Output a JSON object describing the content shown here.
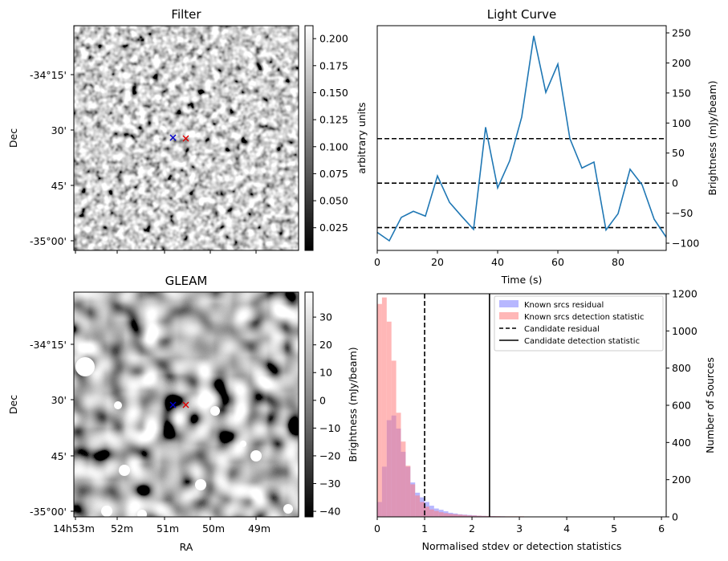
{
  "panels": {
    "filter": {
      "title": "Filter",
      "dec_ticks": [
        "-34°15'",
        "30'",
        "45'",
        "-35°00'"
      ],
      "ylabel": "Dec",
      "colorbar": {
        "label": "arbitrary units",
        "ticks": [
          "0.025",
          "0.050",
          "0.075",
          "0.100",
          "0.125",
          "0.150",
          "0.175",
          "0.200"
        ],
        "values": [
          0.025,
          0.05,
          0.075,
          0.1,
          0.125,
          0.15,
          0.175,
          0.2
        ],
        "range": [
          0.004,
          0.212
        ]
      },
      "markers": [
        {
          "name": "blue-cross",
          "color": "#0000cc"
        },
        {
          "name": "red-cross",
          "color": "#dd0000"
        }
      ]
    },
    "gleam": {
      "title": "GLEAM",
      "dec_ticks": [
        "-34°15'",
        "30'",
        "45'",
        "-35°00'"
      ],
      "ylabel": "Dec",
      "xlabel": "RA",
      "ra_ticks": [
        "14h53m",
        "52m",
        "51m",
        "50m",
        "49m"
      ],
      "colorbar": {
        "label": "Brightness (mJy/beam)",
        "ticks": [
          "30",
          "20",
          "10",
          "0",
          "−10",
          "−20",
          "−30",
          "−40"
        ],
        "values": [
          30,
          20,
          10,
          0,
          -10,
          -20,
          -30,
          -40
        ],
        "range": [
          -42,
          39
        ]
      }
    }
  },
  "chart_data": [
    {
      "type": "line",
      "title": "Light Curve",
      "xlabel": "Time (s)",
      "ylabel": "Brightness (mJy/beam)",
      "xlim": [
        0,
        96
      ],
      "ylim": [
        -112,
        262
      ],
      "xticks": [
        0,
        20,
        40,
        60,
        80
      ],
      "yticks": [
        -100,
        -50,
        0,
        50,
        100,
        150,
        200,
        250
      ],
      "x": [
        0,
        4,
        8,
        12,
        16,
        20,
        24,
        28,
        32,
        36,
        40,
        44,
        48,
        52,
        56,
        60,
        64,
        68,
        72,
        76,
        80,
        84,
        88,
        92,
        96
      ],
      "y": [
        -82,
        -96,
        -57,
        -47,
        -55,
        12,
        -32,
        -55,
        -77,
        93,
        -8,
        37,
        110,
        245,
        151,
        198,
        74,
        25,
        35,
        -78,
        -51,
        23,
        -3,
        -60,
        -90
      ],
      "hlines": [
        74,
        0,
        -74
      ],
      "color": "#1f77b4"
    },
    {
      "type": "histogram",
      "xlabel": "Normalised stdev or detection statistics",
      "ylabel": "Number of Sources",
      "xlim": [
        0,
        6.1
      ],
      "ylim": [
        0,
        1200
      ],
      "xticks": [
        0,
        1,
        2,
        3,
        4,
        5,
        6
      ],
      "yticks": [
        0,
        200,
        400,
        600,
        800,
        1000,
        1200
      ],
      "bin_width": 0.1,
      "series": [
        {
          "name": "Known srcs residual",
          "color": "#7b7bff",
          "values": [
            80,
            270,
            520,
            545,
            475,
            350,
            270,
            185,
            130,
            105,
            80,
            60,
            45,
            38,
            30,
            22,
            18,
            14,
            12,
            10,
            8,
            6,
            5,
            4,
            4,
            3,
            3,
            2,
            2,
            2,
            2,
            1,
            1,
            1,
            1,
            1,
            1,
            1,
            1,
            1
          ]
        },
        {
          "name": "Known srcs detection statistic",
          "color": "#ff7b7b",
          "values": [
            1145,
            1180,
            1050,
            840,
            560,
            405,
            275,
            175,
            115,
            80,
            55,
            40,
            32,
            25,
            20,
            16,
            14,
            12,
            10,
            8,
            7,
            6,
            5,
            5,
            4,
            4,
            3,
            3,
            3,
            3,
            3,
            2,
            2,
            2,
            2,
            2,
            2,
            2,
            2,
            2,
            1,
            1,
            1,
            1,
            1,
            1,
            1,
            1,
            1,
            1,
            1,
            1,
            1,
            1,
            1,
            1,
            1,
            1,
            1,
            1
          ]
        }
      ],
      "vlines": [
        {
          "name": "Candidate residual",
          "x": 1.0,
          "style": "dashed"
        },
        {
          "name": "Candidate detection statistic",
          "x": 2.37,
          "style": "solid"
        }
      ]
    }
  ]
}
